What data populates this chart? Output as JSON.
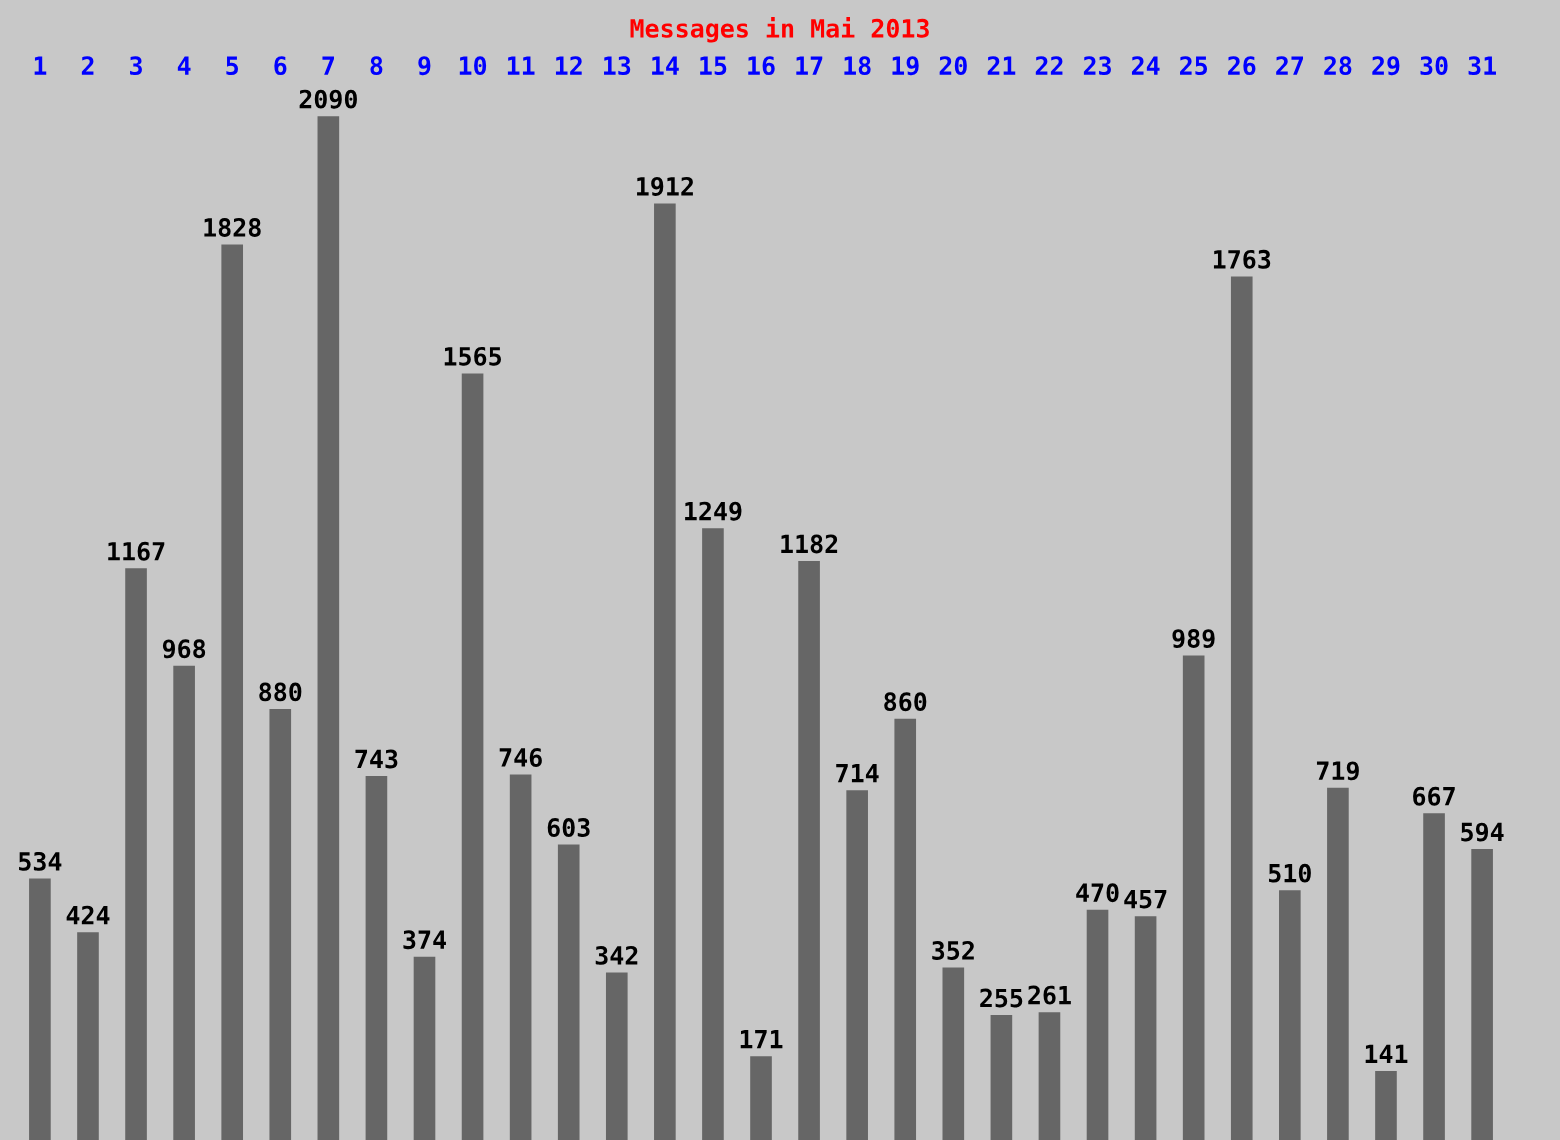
{
  "chart_data": {
    "type": "bar",
    "title": "Messages in Mai 2013",
    "categories": [
      "1",
      "2",
      "3",
      "4",
      "5",
      "6",
      "7",
      "8",
      "9",
      "10",
      "11",
      "12",
      "13",
      "14",
      "15",
      "16",
      "17",
      "18",
      "19",
      "20",
      "21",
      "22",
      "23",
      "24",
      "25",
      "26",
      "27",
      "28",
      "29",
      "30",
      "31"
    ],
    "values": [
      534,
      424,
      1167,
      968,
      1828,
      880,
      2090,
      743,
      374,
      1565,
      746,
      603,
      342,
      1912,
      1249,
      171,
      1182,
      714,
      860,
      352,
      255,
      261,
      470,
      457,
      989,
      1763,
      510,
      719,
      141,
      667,
      594
    ],
    "color": "#666666",
    "data_labels": true,
    "grid": false,
    "legend": false
  }
}
